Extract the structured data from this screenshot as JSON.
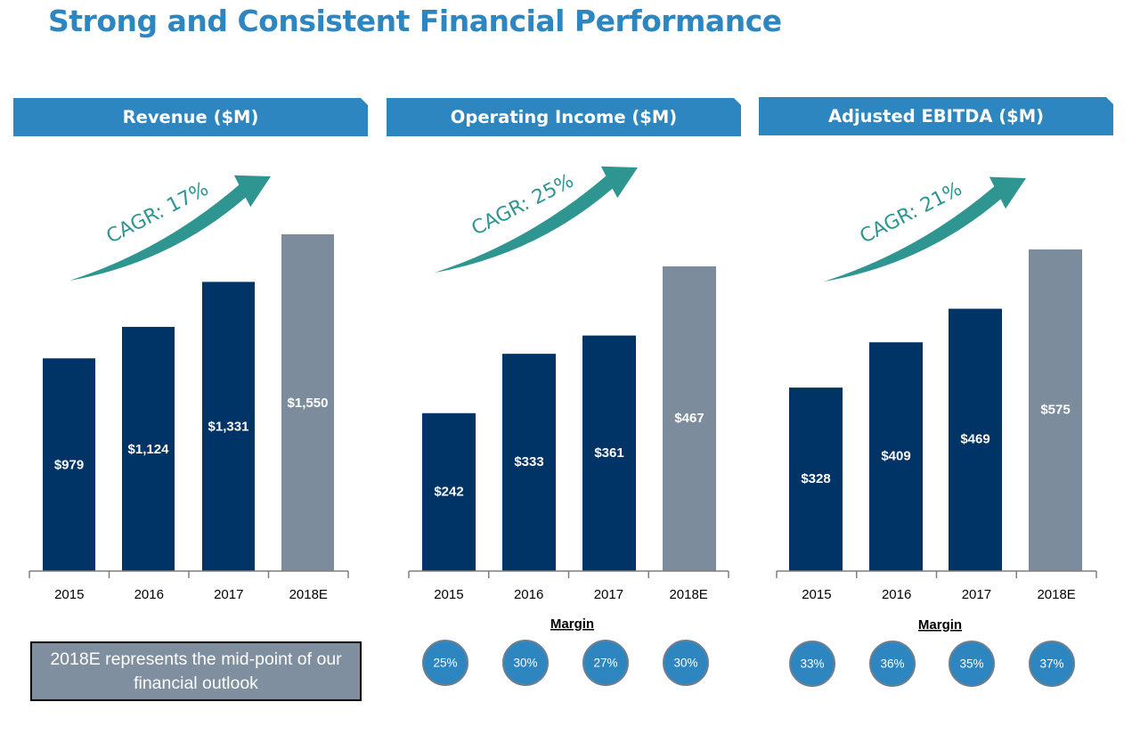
{
  "page": {
    "title": "Strong and Consistent Financial Performance"
  },
  "note": "2018E represents the mid-point of our financial outlook",
  "colors": {
    "actual_bar": "#003366",
    "estimate_bar": "#7c8c9c",
    "banner": "#2e86c1",
    "arrow": "#2e9590",
    "margin_circle": "#2e86c1"
  },
  "chart_data": [
    {
      "type": "bar",
      "title": "Revenue ($M)",
      "cagr_label": "CAGR: 17%",
      "categories": [
        "2015",
        "2016",
        "2017",
        "2018E"
      ],
      "values": [
        979,
        1124,
        1331,
        1550
      ],
      "value_labels": [
        "$979",
        "$1,124",
        "$1,331",
        "$1,550"
      ],
      "estimate_category": "2018E",
      "ylim": [
        0,
        1650
      ]
    },
    {
      "type": "bar",
      "title": "Operating Income ($M)",
      "cagr_label": "CAGR: 25%",
      "categories": [
        "2015",
        "2016",
        "2017",
        "2018E"
      ],
      "values": [
        242,
        333,
        361,
        467
      ],
      "value_labels": [
        "$242",
        "$333",
        "$361",
        "$467"
      ],
      "estimate_category": "2018E",
      "ylim": [
        0,
        520
      ],
      "margin_label": "Margin",
      "margins": [
        "25%",
        "30%",
        "27%",
        "30%"
      ]
    },
    {
      "type": "bar",
      "title": "Adjusted EBITDA ($M)",
      "cagr_label": "CAGR: 21%",
      "categories": [
        "2015",
        "2016",
        "2017",
        "2018E"
      ],
      "values": [
        328,
        409,
        469,
        575
      ],
      "value_labels": [
        "$328",
        "$409",
        "$469",
        "$575"
      ],
      "estimate_category": "2018E",
      "ylim": [
        0,
        630
      ],
      "margin_label": "Margin",
      "margins": [
        "33%",
        "36%",
        "35%",
        "37%"
      ]
    }
  ]
}
